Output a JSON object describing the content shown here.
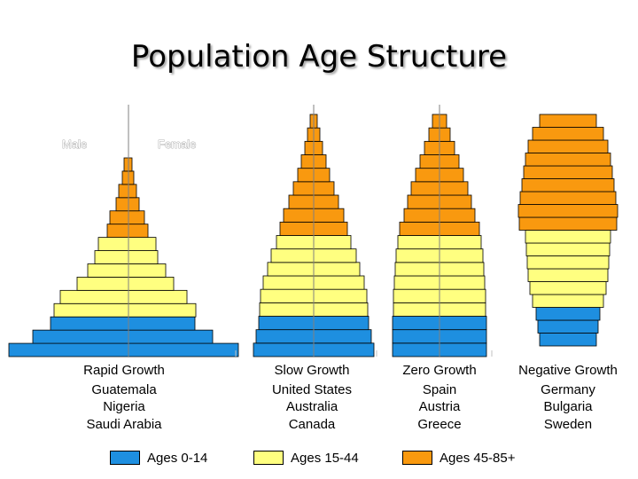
{
  "title": "Population Age Structure",
  "colors": {
    "ages_0_14": "#1e8fe0",
    "ages_15_44": "#ffff80",
    "ages_45_85": "#f9990f",
    "axis": "#808080",
    "bar_stroke": "#000000"
  },
  "sex_labels": {
    "male": "Male",
    "female": "Female"
  },
  "legend": [
    {
      "label": "Ages 0-14",
      "color": "#1e8fe0"
    },
    {
      "label": "Ages 15-44",
      "color": "#ffff80"
    },
    {
      "label": "Ages 45-85+",
      "color": "#f9990f"
    }
  ],
  "chart_data": [
    {
      "type": "bar",
      "title": "Rapid Growth",
      "countries": [
        "Guatemala",
        "Nigeria",
        "Saudi Arabia"
      ],
      "orientation": "population-pyramid",
      "age_groups_bottom_to_top": 15,
      "group_colors_bottom_to_top": [
        "ages_0_14",
        "ages_0_14",
        "ages_0_14",
        "ages_15_44",
        "ages_15_44",
        "ages_15_44",
        "ages_15_44",
        "ages_15_44",
        "ages_15_44",
        "ages_45_85",
        "ages_45_85",
        "ages_45_85",
        "ages_45_85",
        "ages_45_85",
        "ages_45_85"
      ],
      "male_values": [
        135,
        108,
        88,
        84,
        77,
        58,
        46,
        38,
        34,
        24,
        21,
        14,
        11,
        7,
        5
      ],
      "female_values": [
        124,
        95,
        75,
        76,
        66,
        51,
        42,
        33,
        31,
        22,
        18,
        12,
        9,
        6,
        4
      ]
    },
    {
      "type": "bar",
      "title": "Slow Growth",
      "countries": [
        "United States",
        "Australia",
        "Canada"
      ],
      "orientation": "population-pyramid",
      "age_groups_bottom_to_top": 18,
      "group_colors_bottom_to_top": [
        "ages_0_14",
        "ages_0_14",
        "ages_0_14",
        "ages_15_44",
        "ages_15_44",
        "ages_15_44",
        "ages_15_44",
        "ages_15_44",
        "ages_15_44",
        "ages_45_85",
        "ages_45_85",
        "ages_45_85",
        "ages_45_85",
        "ages_45_85",
        "ages_45_85",
        "ages_45_85",
        "ages_45_85",
        "ages_45_85"
      ],
      "male_values": [
        68,
        65,
        62,
        61,
        60,
        57,
        52,
        48,
        42,
        38,
        34,
        28,
        23,
        18,
        14,
        10,
        7,
        4
      ],
      "female_values": [
        68,
        65,
        62,
        61,
        60,
        57,
        52,
        48,
        42,
        38,
        34,
        28,
        23,
        18,
        14,
        10,
        7,
        4
      ]
    },
    {
      "type": "bar",
      "title": "Zero Growth",
      "countries": [
        "Spain",
        "Austria",
        "Greece"
      ],
      "orientation": "population-pyramid",
      "age_groups_bottom_to_top": 18,
      "group_colors_bottom_to_top": [
        "ages_0_14",
        "ages_0_14",
        "ages_0_14",
        "ages_15_44",
        "ages_15_44",
        "ages_15_44",
        "ages_15_44",
        "ages_15_44",
        "ages_15_44",
        "ages_45_85",
        "ages_45_85",
        "ages_45_85",
        "ages_45_85",
        "ages_45_85",
        "ages_45_85",
        "ages_45_85",
        "ages_45_85",
        "ages_45_85"
      ],
      "male_values": [
        53,
        53,
        53,
        52,
        52,
        51,
        50,
        49,
        47,
        45,
        40,
        36,
        32,
        27,
        22,
        17,
        12,
        8
      ],
      "female_values": [
        53,
        53,
        53,
        52,
        52,
        51,
        50,
        49,
        47,
        45,
        40,
        36,
        32,
        27,
        22,
        17,
        12,
        8
      ]
    },
    {
      "type": "bar",
      "title": "Negative Growth",
      "countries": [
        "Germany",
        "Bulgaria",
        "Sweden"
      ],
      "orientation": "population-pyramid",
      "age_groups_bottom_to_top": 18,
      "group_colors_bottom_to_top": [
        "ages_0_14",
        "ages_0_14",
        "ages_0_14",
        "ages_15_44",
        "ages_15_44",
        "ages_15_44",
        "ages_15_44",
        "ages_15_44",
        "ages_15_44",
        "ages_45_85",
        "ages_45_85",
        "ages_45_85",
        "ages_45_85",
        "ages_45_85",
        "ages_45_85",
        "ages_45_85",
        "ages_45_85",
        "ages_45_85"
      ],
      "male_values": [
        32,
        34,
        36,
        40,
        43,
        45,
        46,
        47,
        48,
        55,
        56,
        54,
        52,
        50,
        48,
        45,
        40,
        32
      ],
      "female_values": [
        32,
        34,
        36,
        40,
        43,
        45,
        46,
        47,
        48,
        55,
        56,
        54,
        52,
        50,
        48,
        45,
        40,
        32
      ]
    }
  ]
}
